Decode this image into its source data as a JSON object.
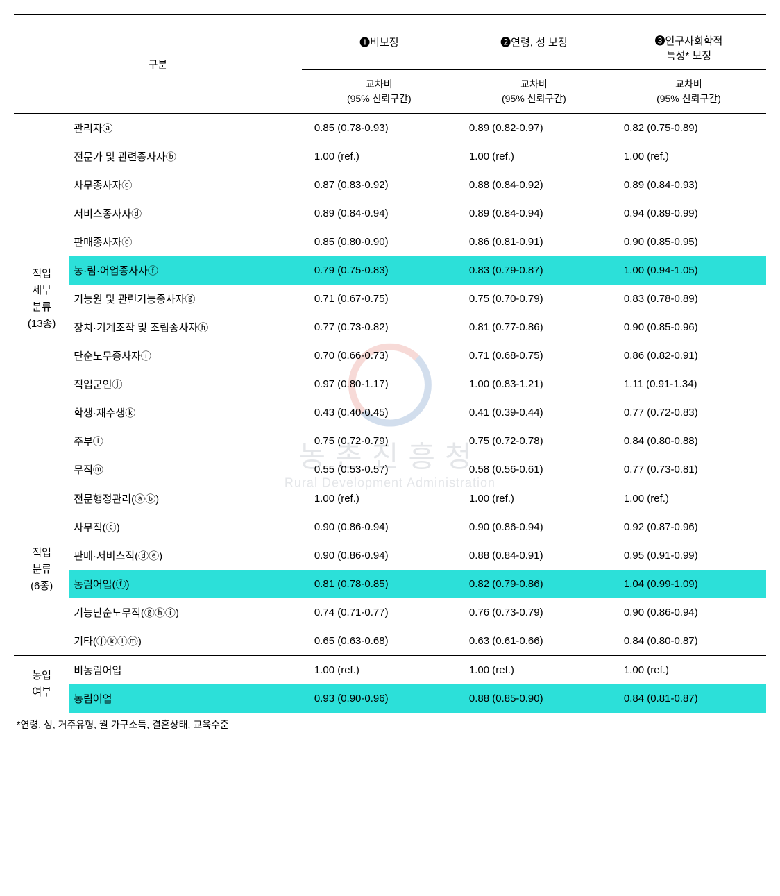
{
  "highlight_color": "#2ce0d9",
  "header": {
    "category_label": "구분",
    "models": [
      {
        "num": "❶",
        "title": "비보정"
      },
      {
        "num": "❷",
        "title": "연령, 성 보정"
      },
      {
        "num": "❸",
        "title": "인구사회학적\n특성* 보정"
      }
    ],
    "sub_label": "교차비\n(95% 신뢰구간)"
  },
  "groups": [
    {
      "label": "직업\n세부\n분류\n(13종)",
      "rows": [
        {
          "name": "관리자ⓐ",
          "vals": [
            "0.85 (0.78-0.93)",
            "0.89 (0.82-0.97)",
            "0.82 (0.75-0.89)"
          ],
          "hl": false
        },
        {
          "name": "전문가 및 관련종사자ⓑ",
          "vals": [
            "1.00 (ref.)",
            "1.00 (ref.)",
            "1.00 (ref.)"
          ],
          "hl": false
        },
        {
          "name": "사무종사자ⓒ",
          "vals": [
            "0.87 (0.83-0.92)",
            "0.88 (0.84-0.92)",
            "0.89 (0.84-0.93)"
          ],
          "hl": false
        },
        {
          "name": "서비스종사자ⓓ",
          "vals": [
            "0.89 (0.84-0.94)",
            "0.89 (0.84-0.94)",
            "0.94 (0.89-0.99)"
          ],
          "hl": false
        },
        {
          "name": "판매종사자ⓔ",
          "vals": [
            "0.85 (0.80-0.90)",
            "0.86 (0.81-0.91)",
            "0.90 (0.85-0.95)"
          ],
          "hl": false
        },
        {
          "name": "농·림·어업종사자ⓕ",
          "vals": [
            "0.79 (0.75-0.83)",
            "0.83 (0.79-0.87)",
            "1.00 (0.94-1.05)"
          ],
          "hl": true
        },
        {
          "name": "기능원 및 관련기능종사자ⓖ",
          "vals": [
            "0.71 (0.67-0.75)",
            "0.75 (0.70-0.79)",
            "0.83 (0.78-0.89)"
          ],
          "hl": false
        },
        {
          "name": "장치·기계조작 및 조립종사자ⓗ",
          "vals": [
            "0.77 (0.73-0.82)",
            "0.81 (0.77-0.86)",
            "0.90 (0.85-0.96)"
          ],
          "hl": false
        },
        {
          "name": "단순노무종사자ⓘ",
          "vals": [
            "0.70 (0.66-0.73)",
            "0.71 (0.68-0.75)",
            "0.86 (0.82-0.91)"
          ],
          "hl": false
        },
        {
          "name": "직업군인ⓙ",
          "vals": [
            "0.97 (0.80-1.17)",
            "1.00 (0.83-1.21)",
            "1.11 (0.91-1.34)"
          ],
          "hl": false
        },
        {
          "name": "학생·재수생ⓚ",
          "vals": [
            "0.43 (0.40-0.45)",
            "0.41 (0.39-0.44)",
            "0.77 (0.72-0.83)"
          ],
          "hl": false
        },
        {
          "name": "주부ⓛ",
          "vals": [
            "0.75 (0.72-0.79)",
            "0.75 (0.72-0.78)",
            "0.84 (0.80-0.88)"
          ],
          "hl": false
        },
        {
          "name": "무직ⓜ",
          "vals": [
            "0.55 (0.53-0.57)",
            "0.58 (0.56-0.61)",
            "0.77 (0.73-0.81)"
          ],
          "hl": false
        }
      ]
    },
    {
      "label": "직업\n분류\n(6종)",
      "rows": [
        {
          "name": "전문행정관리(ⓐⓑ)",
          "vals": [
            "1.00 (ref.)",
            "1.00 (ref.)",
            "1.00 (ref.)"
          ],
          "hl": false
        },
        {
          "name": "사무직(ⓒ)",
          "vals": [
            "0.90 (0.86-0.94)",
            "0.90 (0.86-0.94)",
            "0.92 (0.87-0.96)"
          ],
          "hl": false
        },
        {
          "name": "판매·서비스직(ⓓⓔ)",
          "vals": [
            "0.90 (0.86-0.94)",
            "0.88 (0.84-0.91)",
            "0.95 (0.91-0.99)"
          ],
          "hl": false
        },
        {
          "name": "농림어업(ⓕ)",
          "vals": [
            "0.81 (0.78-0.85)",
            "0.82 (0.79-0.86)",
            "1.04 (0.99-1.09)"
          ],
          "hl": true
        },
        {
          "name": "기능단순노무직(ⓖⓗⓘ)",
          "vals": [
            "0.74 (0.71-0.77)",
            "0.76 (0.73-0.79)",
            "0.90 (0.86-0.94)"
          ],
          "hl": false
        },
        {
          "name": "기타(ⓙⓚⓛⓜ)",
          "vals": [
            "0.65 (0.63-0.68)",
            "0.63 (0.61-0.66)",
            "0.84 (0.80-0.87)"
          ],
          "hl": false
        }
      ]
    },
    {
      "label": "농업\n여부",
      "rows": [
        {
          "name": "비농림어업",
          "vals": [
            "1.00 (ref.)",
            "1.00 (ref.)",
            "1.00 (ref.)"
          ],
          "hl": false
        },
        {
          "name": "농림어업",
          "vals": [
            "0.93 (0.90-0.96)",
            "0.88 (0.85-0.90)",
            "0.84 (0.81-0.87)"
          ],
          "hl": true
        }
      ]
    }
  ],
  "footnote": "*연령, 성, 거주유형, 월 가구소득, 결혼상태, 교육수준",
  "watermark": {
    "line1": "농촌진흥청",
    "line2": "Rural Development Administration"
  }
}
